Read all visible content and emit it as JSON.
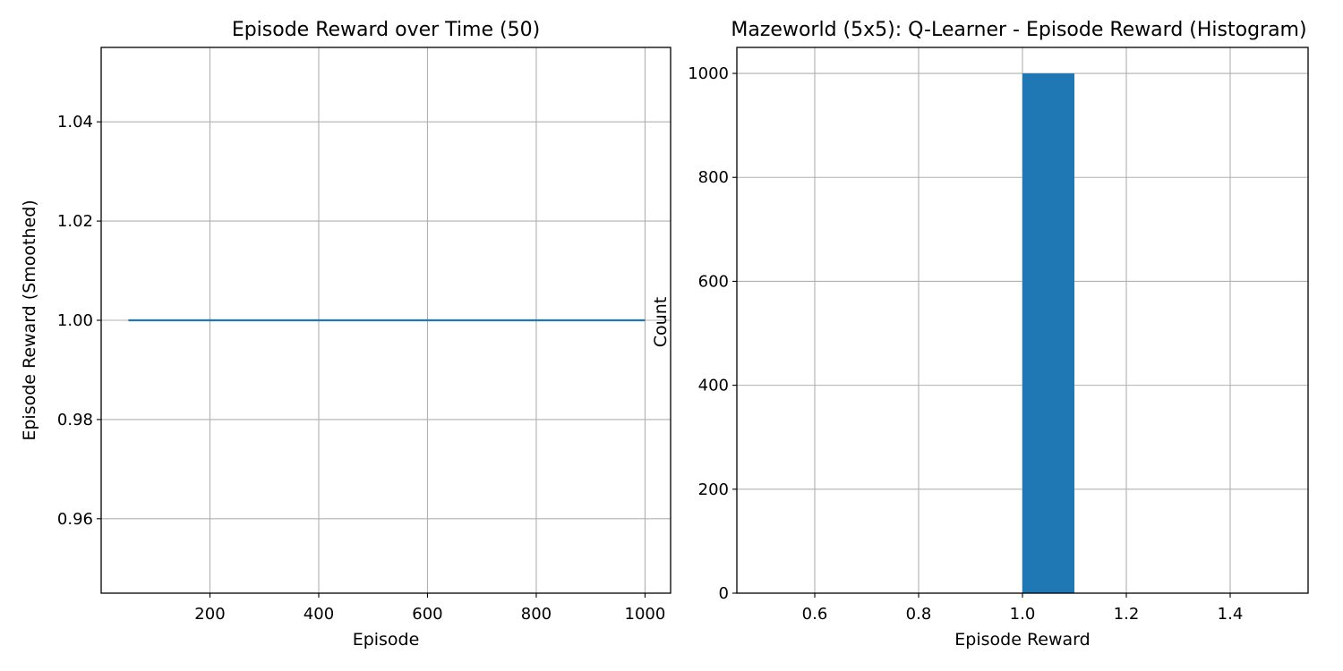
{
  "chart_data": [
    {
      "type": "line",
      "title": "Episode Reward over Time (50)",
      "xlabel": "Episode",
      "ylabel": "Episode Reward (Smoothed)",
      "xlim": [
        0,
        1047
      ],
      "ylim": [
        0.945,
        1.055
      ],
      "x_ticks": [
        200,
        400,
        600,
        800,
        1000
      ],
      "y_ticks": [
        0.96,
        0.98,
        1.0,
        1.02,
        1.04
      ],
      "x_tick_labels": [
        "200",
        "400",
        "600",
        "800",
        "1000"
      ],
      "y_tick_labels": [
        "0.96",
        "0.98",
        "1.00",
        "1.02",
        "1.04"
      ],
      "grid": true,
      "series": [
        {
          "color": "#1f77b4",
          "x": [
            50,
            1000
          ],
          "y": [
            1.0,
            1.0
          ]
        }
      ]
    },
    {
      "type": "bar",
      "title": "Mazeworld (5x5): Q-Learner - Episode Reward (Histogram)",
      "xlabel": "Episode Reward",
      "ylabel": "Count",
      "xlim": [
        0.45,
        1.55
      ],
      "ylim": [
        0,
        1050
      ],
      "x_ticks": [
        0.6,
        0.8,
        1.0,
        1.2,
        1.4
      ],
      "y_ticks": [
        0,
        200,
        400,
        600,
        800,
        1000
      ],
      "x_tick_labels": [
        "0.6",
        "0.8",
        "1.0",
        "1.2",
        "1.4"
      ],
      "y_tick_labels": [
        "0",
        "200",
        "400",
        "600",
        "800",
        "1000"
      ],
      "grid": true,
      "bars": [
        {
          "x0": 1.0,
          "x1": 1.1,
          "value": 1000,
          "color": "#1f77b4"
        }
      ]
    }
  ]
}
